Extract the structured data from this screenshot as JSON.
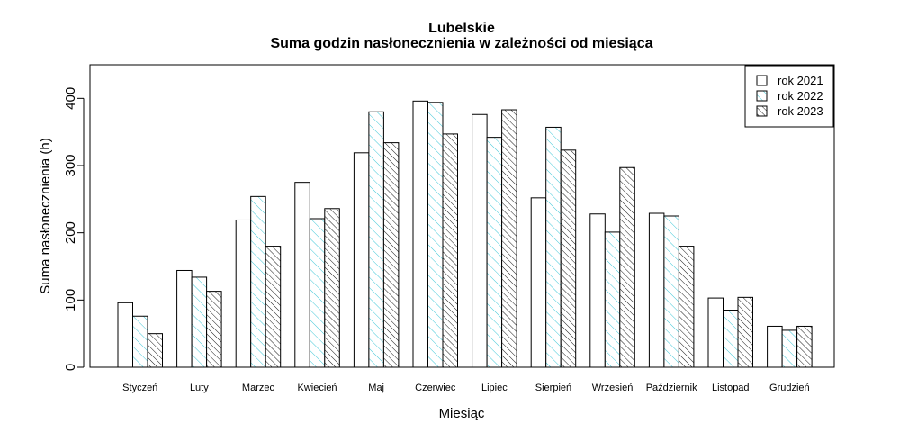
{
  "chart_data": {
    "type": "bar",
    "title": "Lubelskie",
    "subtitle": "Suma godzin nasłonecznienia w zależności od miesiąca",
    "xlabel": "Miesiąc",
    "ylabel": "Suma nasłonecznienia (h)",
    "ylim": [
      0,
      450
    ],
    "yticks": [
      0,
      100,
      200,
      300,
      400
    ],
    "grid": false,
    "legend_position": "top-right",
    "categories": [
      "Styczeń",
      "Luty",
      "Marzec",
      "Kwiecień",
      "Maj",
      "Czerwiec",
      "Lipiec",
      "Sierpień",
      "Wrzesień",
      "Październik",
      "Listopad",
      "Grudzień"
    ],
    "series": [
      {
        "name": "rok 2021",
        "fill": "none",
        "color": "#000000",
        "values": [
          96,
          144,
          219,
          275,
          319,
          396,
          376,
          252,
          228,
          229,
          103,
          61
        ]
      },
      {
        "name": "rok 2022",
        "fill": "hatch-light",
        "color": "#40c8d8",
        "values": [
          76,
          134,
          254,
          221,
          380,
          394,
          342,
          357,
          201,
          225,
          85,
          55
        ]
      },
      {
        "name": "rok 2023",
        "fill": "hatch-dense",
        "color": "#000000",
        "values": [
          50,
          113,
          180,
          236,
          334,
          347,
          383,
          323,
          297,
          180,
          104,
          61
        ]
      }
    ]
  }
}
